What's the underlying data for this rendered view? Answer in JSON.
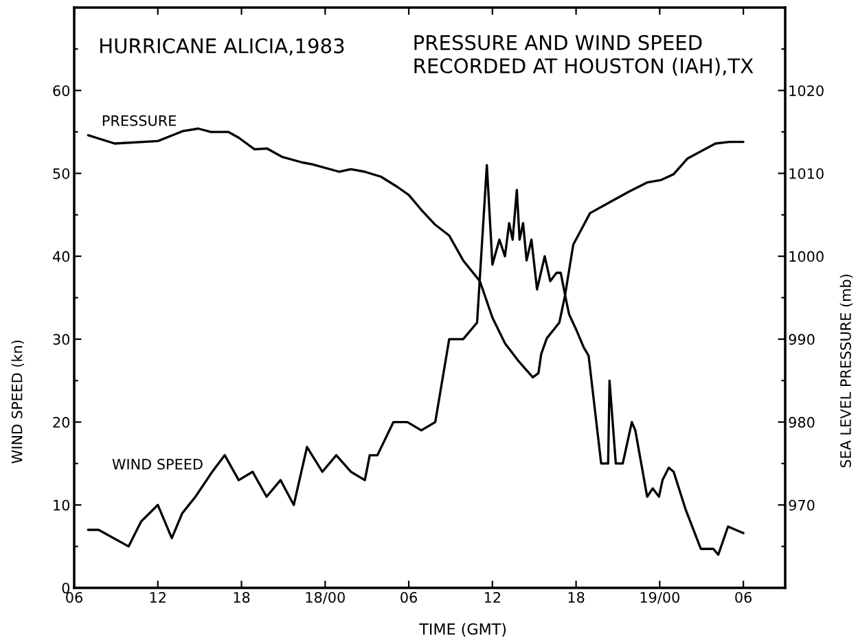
{
  "chart_data": {
    "type": "line",
    "title": "HURRICANE ALICIA,1983",
    "subtitle": "PRESSURE AND WIND SPEED\nRECORDED AT HOUSTON (IAH),TX",
    "xlabel": "TIME (GMT)",
    "ylabel": "WIND SPEED (kn)",
    "y2label": "SEA LEVEL PRESSURE (mb)",
    "xlim": [
      "1983-08-17T06:00",
      "1983-08-19T09:00"
    ],
    "xticks": [
      {
        "value": "1983-08-17T06:00",
        "label": "06"
      },
      {
        "value": "1983-08-17T12:00",
        "label": "12"
      },
      {
        "value": "1983-08-17T18:00",
        "label": "18"
      },
      {
        "value": "1983-08-18T00:00",
        "label": "18/00"
      },
      {
        "value": "1983-08-18T06:00",
        "label": "06"
      },
      {
        "value": "1983-08-18T12:00",
        "label": "12"
      },
      {
        "value": "1983-08-18T18:00",
        "label": "18"
      },
      {
        "value": "1983-08-19T00:00",
        "label": "19/00"
      },
      {
        "value": "1983-08-19T06:00",
        "label": "06"
      }
    ],
    "ylim": [
      0,
      70
    ],
    "yticks": [
      0,
      {
        "value": 5,
        "label": null
      },
      10,
      {
        "value": 15,
        "label": null
      },
      20,
      {
        "value": 25,
        "label": null
      },
      30,
      {
        "value": 35,
        "label": null
      },
      40,
      {
        "value": 45,
        "label": null
      },
      50,
      {
        "value": 55,
        "label": null
      },
      60,
      {
        "value": 65,
        "label": null
      }
    ],
    "y2lim": [
      960,
      1030
    ],
    "y2ticks": [
      {
        "value": 965,
        "label": null
      },
      970,
      {
        "value": 975,
        "label": null
      },
      980,
      {
        "value": 985,
        "label": null
      },
      990,
      {
        "value": 995,
        "label": null
      },
      1000,
      {
        "value": 1005,
        "label": null
      },
      1010,
      {
        "value": 1015,
        "label": null
      },
      1020,
      {
        "value": 1025,
        "label": null
      }
    ],
    "marker": "none",
    "line_style": "solid",
    "series": [
      {
        "name": "WIND SPEED",
        "color": "#000000",
        "x": [
          "1983-08-17T07:00",
          "1983-08-17T07:45",
          "1983-08-17T09:54",
          "1983-08-17T10:48",
          "1983-08-17T12:00",
          "1983-08-17T13:00",
          "1983-08-17T13:45",
          "1983-08-17T14:42",
          "1983-08-17T15:30",
          "1983-08-17T15:54",
          "1983-08-17T16:48",
          "1983-08-17T17:48",
          "1983-08-17T18:48",
          "1983-08-17T19:48",
          "1983-08-17T20:48",
          "1983-08-17T21:45",
          "1983-08-17T22:42",
          "1983-08-17T23:48",
          "1983-08-18T00:48",
          "1983-08-18T01:51",
          "1983-08-18T02:51",
          "1983-08-18T03:12",
          "1983-08-18T03:45",
          "1983-08-18T04:54",
          "1983-08-18T05:54",
          "1983-08-18T06:54",
          "1983-08-18T07:54",
          "1983-08-18T08:54",
          "1983-08-18T09:54",
          "1983-08-18T10:54",
          "1983-08-18T11:36",
          "1983-08-18T12:00",
          "1983-08-18T12:30",
          "1983-08-18T12:54",
          "1983-08-18T13:12",
          "1983-08-18T13:27",
          "1983-08-18T13:45",
          "1983-08-18T13:57",
          "1983-08-18T14:12",
          "1983-08-18T14:27",
          "1983-08-18T14:48",
          "1983-08-18T15:12",
          "1983-08-18T15:45",
          "1983-08-18T16:09",
          "1983-08-18T16:36",
          "1983-08-18T16:54",
          "1983-08-18T17:15",
          "1983-08-18T17:30",
          "1983-08-18T18:03",
          "1983-08-18T18:33",
          "1983-08-18T18:54",
          "1983-08-18T19:48",
          "1983-08-18T20:18",
          "1983-08-18T20:24",
          "1983-08-18T20:51",
          "1983-08-18T21:21",
          "1983-08-18T22:00",
          "1983-08-18T22:15",
          "1983-08-18T23:06",
          "1983-08-18T23:30",
          "1983-08-18T23:57",
          "1983-08-19T00:12",
          "1983-08-19T00:39",
          "1983-08-19T01:00",
          "1983-08-19T01:51",
          "1983-08-19T02:57",
          "1983-08-19T03:51",
          "1983-08-19T04:12",
          "1983-08-19T04:54",
          "1983-08-19T06:00"
        ],
        "values": [
          7,
          7,
          5,
          8,
          10,
          6,
          9,
          11,
          13,
          14,
          16,
          13,
          14,
          11,
          13,
          10,
          17,
          14,
          16,
          14,
          13,
          16,
          16,
          20,
          20,
          19,
          20,
          30,
          30,
          32,
          51,
          39,
          42,
          40,
          44,
          42,
          48,
          42,
          44,
          39.5,
          42,
          36,
          40,
          37,
          38,
          38,
          35,
          33,
          31,
          29,
          28,
          15,
          15,
          25,
          15,
          15,
          20,
          19,
          11,
          12,
          11,
          13,
          14.5,
          14,
          9.5,
          4.7,
          4.7,
          4,
          7.4,
          6.6
        ]
      },
      {
        "name": "PRESSURE",
        "color": "#000000",
        "axis": "y2",
        "x": [
          "1983-08-17T07:00",
          "1983-08-17T08:54",
          "1983-08-17T12:00",
          "1983-08-17T13:48",
          "1983-08-17T14:54",
          "1983-08-17T15:48",
          "1983-08-17T17:03",
          "1983-08-17T17:48",
          "1983-08-17T18:56",
          "1983-08-17T19:50",
          "1983-08-17T20:54",
          "1983-08-17T22:24",
          "1983-08-17T23:03",
          "1983-08-18T01:00",
          "1983-08-18T01:51",
          "1983-08-18T02:50",
          "1983-08-18T04:00",
          "1983-08-18T05:09",
          "1983-08-18T06:00",
          "1983-08-18T06:54",
          "1983-08-18T07:54",
          "1983-08-18T08:54",
          "1983-08-18T09:54",
          "1983-08-18T11:06",
          "1983-08-18T12:00",
          "1983-08-18T12:54",
          "1983-08-18T13:54",
          "1983-08-18T14:54",
          "1983-08-18T15:18",
          "1983-08-18T15:30",
          "1983-08-18T15:54",
          "1983-08-18T16:48",
          "1983-08-18T17:12",
          "1983-08-18T17:48",
          "1983-08-18T19:00",
          "1983-08-18T20:30",
          "1983-08-18T21:48",
          "1983-08-18T23:06",
          "1983-08-19T00:06",
          "1983-08-19T01:00",
          "1983-08-19T02:00",
          "1983-08-19T04:00",
          "1983-08-19T05:00",
          "1983-08-19T06:00"
        ],
        "values": [
          1014.6,
          1013.6,
          1013.9,
          1015.1,
          1015.4,
          1015,
          1015,
          1014.3,
          1012.9,
          1013,
          1012,
          1011.3,
          1011.1,
          1010.2,
          1010.5,
          1010.2,
          1009.6,
          1008.4,
          1007.4,
          1005.6,
          1003.8,
          1002.5,
          999.5,
          997,
          992.6,
          989.5,
          987.3,
          985.4,
          985.9,
          988.2,
          990.1,
          992,
          995.2,
          1001.4,
          1005.2,
          1006.6,
          1007.8,
          1008.9,
          1009.2,
          1009.9,
          1011.8,
          1013.6,
          1013.8,
          1013.8
        ]
      }
    ]
  }
}
